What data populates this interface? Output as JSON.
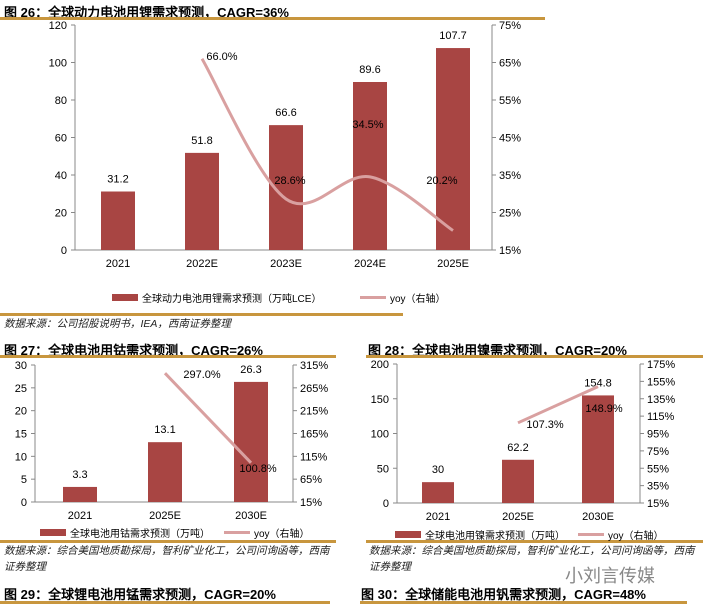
{
  "figures": [
    {
      "title": "图 26：全球动力电池用锂需求预测，CAGR=36%",
      "source": "数据来源：公司招股说明书，IEA，西南证券整理"
    },
    {
      "title": "图 27：全球电池用钴需求预测，CAGR=26%",
      "source": "数据来源：综合美国地质勘探局，智利矿业化工，公司问询函等，西南证券整理"
    },
    {
      "title": "图 28：全球电池用镍需求预测，CAGR=20%",
      "source": "数据来源：综合美国地质勘探局，智利矿业化工，公司问询函等，西南证券整理"
    },
    {
      "title": "图 29：全球锂电池用锰需求预测，CAGR=20%"
    },
    {
      "title": "图 30：全球储能电池用钒需求预测，CAGR=48%"
    }
  ],
  "watermark": "小刘言传媒",
  "colors": {
    "bar": "#A84543",
    "line": "#D9A0A0",
    "rule": "#C8963E"
  },
  "chart_data": [
    {
      "type": "bar+line",
      "categories": [
        "2021",
        "2022E",
        "2023E",
        "2024E",
        "2025E"
      ],
      "series": [
        {
          "name": "全球动力电池用锂需求预测（万吨LCE）",
          "type": "bar",
          "values": [
            31.2,
            51.8,
            66.6,
            89.6,
            107.7
          ],
          "labels": [
            "31.2",
            "51.8",
            "66.6",
            "89.6",
            "107.7"
          ]
        },
        {
          "name": "yoy（右轴）",
          "type": "line",
          "smooth": true,
          "values": [
            null,
            66.0,
            28.6,
            34.5,
            20.2
          ],
          "labels": [
            "",
            "66.0%",
            "28.6%",
            "34.5%",
            "20.2%"
          ]
        }
      ],
      "ylim": [
        0,
        120
      ],
      "yticks": [
        "0",
        "20",
        "40",
        "60",
        "80",
        "100",
        "120"
      ],
      "y2lim": [
        15,
        75
      ],
      "y2ticks": [
        "15%",
        "25%",
        "35%",
        "45%",
        "55%",
        "65%",
        "75%"
      ],
      "legend": "bottom"
    },
    {
      "type": "bar+line",
      "categories": [
        "2021",
        "2025E",
        "2030E"
      ],
      "series": [
        {
          "name": "全球电池用钴需求预测（万吨）",
          "type": "bar",
          "values": [
            3.3,
            13.1,
            26.3
          ],
          "labels": [
            "3.3",
            "13.1",
            "26.3"
          ]
        },
        {
          "name": "yoy（右轴）",
          "type": "line",
          "values": [
            null,
            297.0,
            100.8
          ],
          "labels": [
            "",
            "297.0%",
            "100.8%"
          ]
        }
      ],
      "ylim": [
        0,
        30
      ],
      "yticks": [
        "0",
        "5",
        "10",
        "15",
        "20",
        "25",
        "30"
      ],
      "y2lim": [
        15,
        315
      ],
      "y2ticks": [
        "15%",
        "65%",
        "115%",
        "165%",
        "215%",
        "265%",
        "315%"
      ],
      "legend": "bottom"
    },
    {
      "type": "bar+line",
      "categories": [
        "2021",
        "2025E",
        "2030E"
      ],
      "series": [
        {
          "name": "全球电池用镍需求预测（万吨）",
          "type": "bar",
          "values": [
            30,
            62.2,
            154.8
          ],
          "labels": [
            "30",
            "62.2",
            "154.8"
          ]
        },
        {
          "name": "yoy（右轴）",
          "type": "line",
          "values": [
            null,
            107.3,
            148.9
          ],
          "labels": [
            "",
            "107.3%",
            "148.9%"
          ]
        }
      ],
      "ylim": [
        0,
        200
      ],
      "yticks": [
        "0",
        "50",
        "100",
        "150",
        "200"
      ],
      "y2lim": [
        15,
        175
      ],
      "y2ticks": [
        "15%",
        "35%",
        "55%",
        "75%",
        "95%",
        "115%",
        "135%",
        "155%",
        "175%"
      ],
      "legend": "bottom"
    }
  ]
}
